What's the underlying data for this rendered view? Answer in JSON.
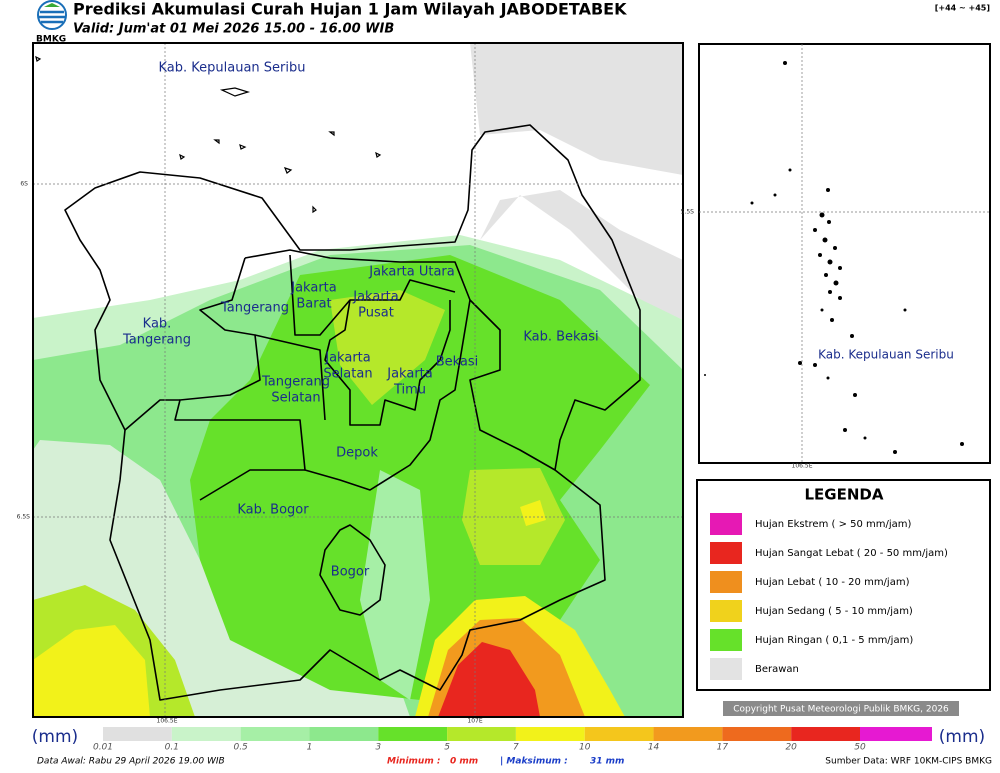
{
  "header": {
    "title": "Prediksi Akumulasi Curah Hujan 1 Jam Wilayah JABODETABEK",
    "subtitle": "Valid: Jum'at 01 Mei 2026 15.00 - 16.00 WIB",
    "logo": "BMKG",
    "offset": "[+44 ~ +45]"
  },
  "map": {
    "labels": [
      {
        "lines": [
          "Kab. Kepulauan Seribu"
        ]
      },
      {
        "lines": [
          "Kab.",
          "Tangerang"
        ]
      },
      {
        "lines": [
          "Tangerang"
        ]
      },
      {
        "lines": [
          "Jakarta",
          "Barat"
        ]
      },
      {
        "lines": [
          "Jakarta Utara"
        ]
      },
      {
        "lines": [
          "Jakarta",
          "Pusat"
        ]
      },
      {
        "lines": [
          "Jakarta",
          "Selatan"
        ]
      },
      {
        "lines": [
          "Jakarta",
          "Timu"
        ]
      },
      {
        "lines": [
          "Tangerang",
          "Selatan"
        ]
      },
      {
        "lines": [
          "Bekasi"
        ]
      },
      {
        "lines": [
          "Kab. Bekasi"
        ]
      },
      {
        "lines": [
          "Depok"
        ]
      },
      {
        "lines": [
          "Kab. Bogor"
        ]
      },
      {
        "lines": [
          "Bogor"
        ]
      }
    ],
    "lat_labels": [
      "6S",
      "6.5S"
    ],
    "lon_labels": [
      "106.5E",
      "107E"
    ]
  },
  "inset": {
    "label": "Kab. Kepulauan Seribu",
    "lat_label": "5.5S",
    "lon_label": "106.5E"
  },
  "legend": {
    "title": "LEGENDA",
    "items": [
      {
        "label": "Hujan Ekstrem ( > 50 mm/jam)",
        "color": "#e619b4"
      },
      {
        "label": "Hujan Sangat Lebat ( 20 - 50 mm/jam)",
        "color": "#e8261f"
      },
      {
        "label": "Hujan Lebat ( 10 - 20 mm/jam)",
        "color": "#ef8f1e"
      },
      {
        "label": "Hujan Sedang ( 5 - 10 mm/jam)",
        "color": "#f0d21c"
      },
      {
        "label": "Hujan Ringan ( 0,1 - 5 mm/jam)",
        "color": "#66e12a"
      },
      {
        "label": "Berawan",
        "color": "#e3e3e3"
      }
    ]
  },
  "copyright": "Copyright Pusat Meteorologi Publik BMKG, 2026",
  "colorbar": {
    "unit": "(mm)",
    "ticks": [
      0.01,
      0.1,
      0.5,
      1,
      3,
      5,
      7,
      10,
      14,
      17,
      20,
      50
    ],
    "colors": [
      "#e0e0e0",
      "#c9f3c9",
      "#a6efa6",
      "#8de88d",
      "#66e12a",
      "#b5e82a",
      "#f2f21a",
      "#f4c61c",
      "#f29a1e",
      "#ee6a1e",
      "#e8261f",
      "#e619d2"
    ]
  },
  "footer": {
    "data_awal": "Data Awal: Rabu 29 April 2026 19.00 WIB",
    "minimum_label": "Minimum :",
    "minimum": "0 mm",
    "maximum_label": "| Maksimum :",
    "maximum": "31 mm",
    "source": "Sumber Data: WRF 10KM-CIPS BMKG"
  }
}
